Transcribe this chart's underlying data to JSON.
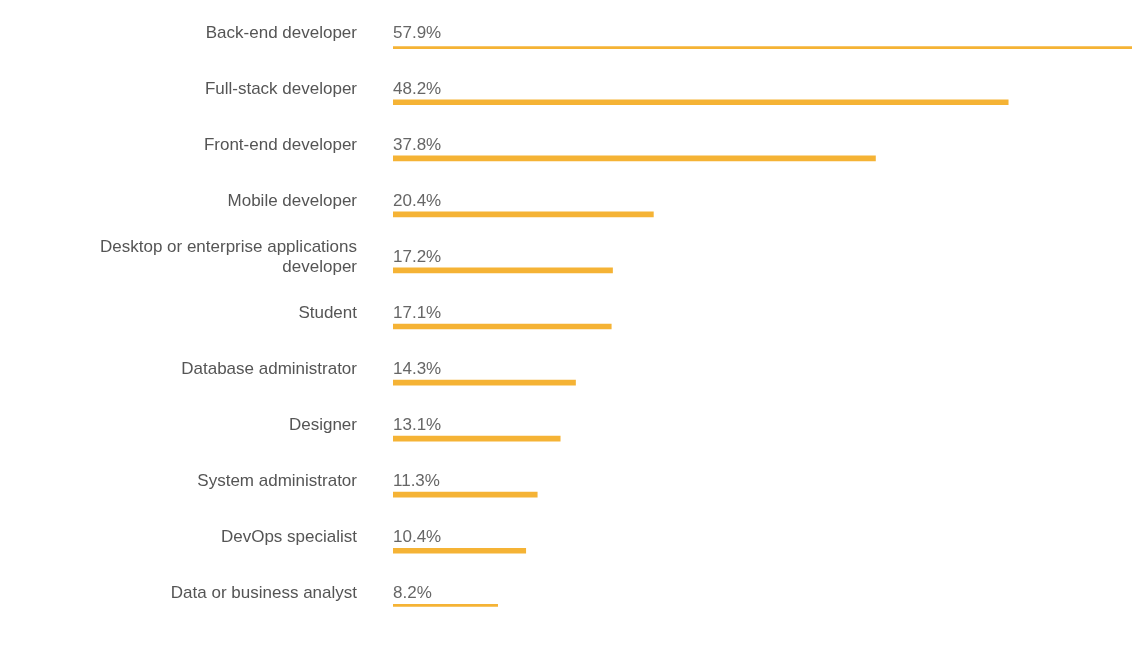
{
  "chart_data": {
    "type": "bar",
    "orientation": "horizontal",
    "categories": [
      "Back-end developer",
      "Full-stack developer",
      "Front-end developer",
      "Mobile developer",
      "Desktop or enterprise applications developer",
      "Student",
      "Database administrator",
      "Designer",
      "System administrator",
      "DevOps specialist",
      "Data or business analyst"
    ],
    "values": [
      57.9,
      48.2,
      37.8,
      20.4,
      17.2,
      17.1,
      14.3,
      13.1,
      11.3,
      10.4,
      8.2
    ],
    "value_labels": [
      "57.9%",
      "48.2%",
      "37.8%",
      "20.4%",
      "17.2%",
      "17.1%",
      "14.3%",
      "13.1%",
      "11.3%",
      "10.4%",
      "8.2%"
    ],
    "color": "#f5b335",
    "grid": false,
    "legend": false
  }
}
